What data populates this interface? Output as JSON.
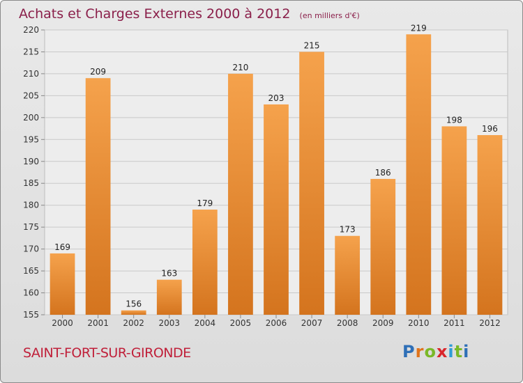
{
  "header": {
    "title": "Achats et Charges Externes 2000 à 2012",
    "unit": "(en milliers d'€)"
  },
  "commune": "SAINT-FORT-SUR-GIRONDE",
  "logo": {
    "text": "Proxiti",
    "letter_colors": [
      "#2e6fb7",
      "#e0731a",
      "#7ab828",
      "#d9262c",
      "#2e9bd6",
      "#7ab828",
      "#2e6fb7"
    ]
  },
  "colors": {
    "bar_top": "#f5a24c",
    "bar_bottom": "#d4741e",
    "title": "#8a1f4a",
    "commune": "#c0203a"
  },
  "chart_data": {
    "type": "bar",
    "categories": [
      "2000",
      "2001",
      "2002",
      "2003",
      "2004",
      "2005",
      "2006",
      "2007",
      "2008",
      "2009",
      "2010",
      "2011",
      "2012"
    ],
    "values": [
      169,
      209,
      156,
      163,
      179,
      210,
      203,
      215,
      173,
      186,
      219,
      198,
      196
    ],
    "ylim": [
      155,
      220
    ],
    "yticks": [
      155,
      160,
      165,
      170,
      175,
      180,
      185,
      190,
      195,
      200,
      205,
      210,
      215,
      220
    ],
    "grid": true
  }
}
